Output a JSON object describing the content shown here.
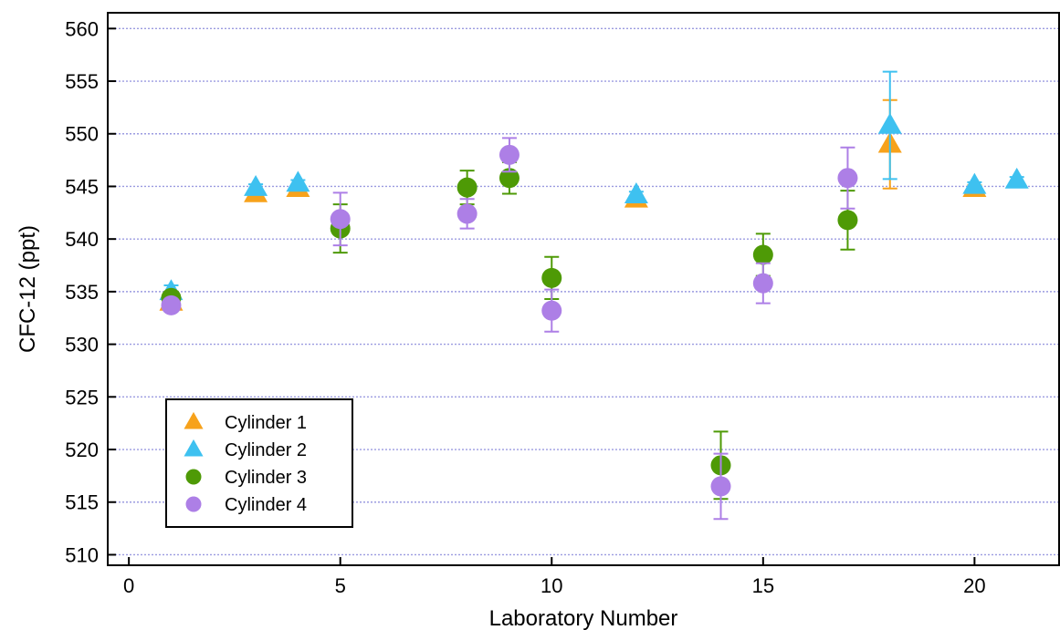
{
  "chart_data": {
    "type": "scatter",
    "title": "",
    "xlabel": "Laboratory Number",
    "ylabel": "CFC-12 (ppt)",
    "xlim": [
      -0.5,
      22
    ],
    "ylim": [
      509,
      561.5
    ],
    "x_ticks": [
      0,
      5,
      10,
      15,
      20
    ],
    "y_ticks": [
      510,
      515,
      520,
      525,
      530,
      535,
      540,
      545,
      550,
      555,
      560
    ],
    "grid": "horizontal dotted",
    "legend_position": "bottom-left",
    "series": [
      {
        "name": "Cylinder  1",
        "marker": "triangle",
        "color": "#f7a21b",
        "points": [
          {
            "x": 1,
            "y": 534.0,
            "err": 0.5
          },
          {
            "x": 3,
            "y": 544.3,
            "err": 0.3
          },
          {
            "x": 4,
            "y": 544.8,
            "err": 0.3
          },
          {
            "x": 12,
            "y": 543.8,
            "err": 0.3
          },
          {
            "x": 18,
            "y": 549.0,
            "err": 4.2
          },
          {
            "x": 20,
            "y": 544.8,
            "err": 0.3
          }
        ]
      },
      {
        "name": "Cylinder  2",
        "marker": "triangle",
        "color": "#3ec1f0",
        "points": [
          {
            "x": 1,
            "y": 535.0,
            "err": 0.6
          },
          {
            "x": 3,
            "y": 544.9,
            "err": 0.3
          },
          {
            "x": 4,
            "y": 545.3,
            "err": 0.3
          },
          {
            "x": 12,
            "y": 544.2,
            "err": 0.3
          },
          {
            "x": 18,
            "y": 550.8,
            "err": 5.1
          },
          {
            "x": 20,
            "y": 545.1,
            "err": 0.3
          },
          {
            "x": 21,
            "y": 545.6,
            "err": 0.3
          }
        ]
      },
      {
        "name": "Cylinder  3",
        "marker": "circle",
        "color": "#4e9a06",
        "points": [
          {
            "x": 1,
            "y": 534.4,
            "err": 0.6
          },
          {
            "x": 5,
            "y": 541.0,
            "err": 2.3
          },
          {
            "x": 8,
            "y": 544.9,
            "err": 1.6
          },
          {
            "x": 9,
            "y": 545.8,
            "err": 1.5
          },
          {
            "x": 10,
            "y": 536.3,
            "err": 2.0
          },
          {
            "x": 14,
            "y": 518.5,
            "err": 3.2
          },
          {
            "x": 15,
            "y": 538.5,
            "err": 2.0
          },
          {
            "x": 17,
            "y": 541.8,
            "err": 2.8
          }
        ]
      },
      {
        "name": "Cylinder  4",
        "marker": "circle",
        "color": "#ad7fe6",
        "points": [
          {
            "x": 1,
            "y": 533.7,
            "err": 0.5
          },
          {
            "x": 5,
            "y": 541.9,
            "err": 2.5
          },
          {
            "x": 8,
            "y": 542.4,
            "err": 1.4
          },
          {
            "x": 9,
            "y": 548.0,
            "err": 1.6
          },
          {
            "x": 10,
            "y": 533.2,
            "err": 2.0
          },
          {
            "x": 14,
            "y": 516.5,
            "err": 3.1
          },
          {
            "x": 15,
            "y": 535.8,
            "err": 1.9
          },
          {
            "x": 17,
            "y": 545.8,
            "err": 2.9
          }
        ]
      }
    ]
  }
}
